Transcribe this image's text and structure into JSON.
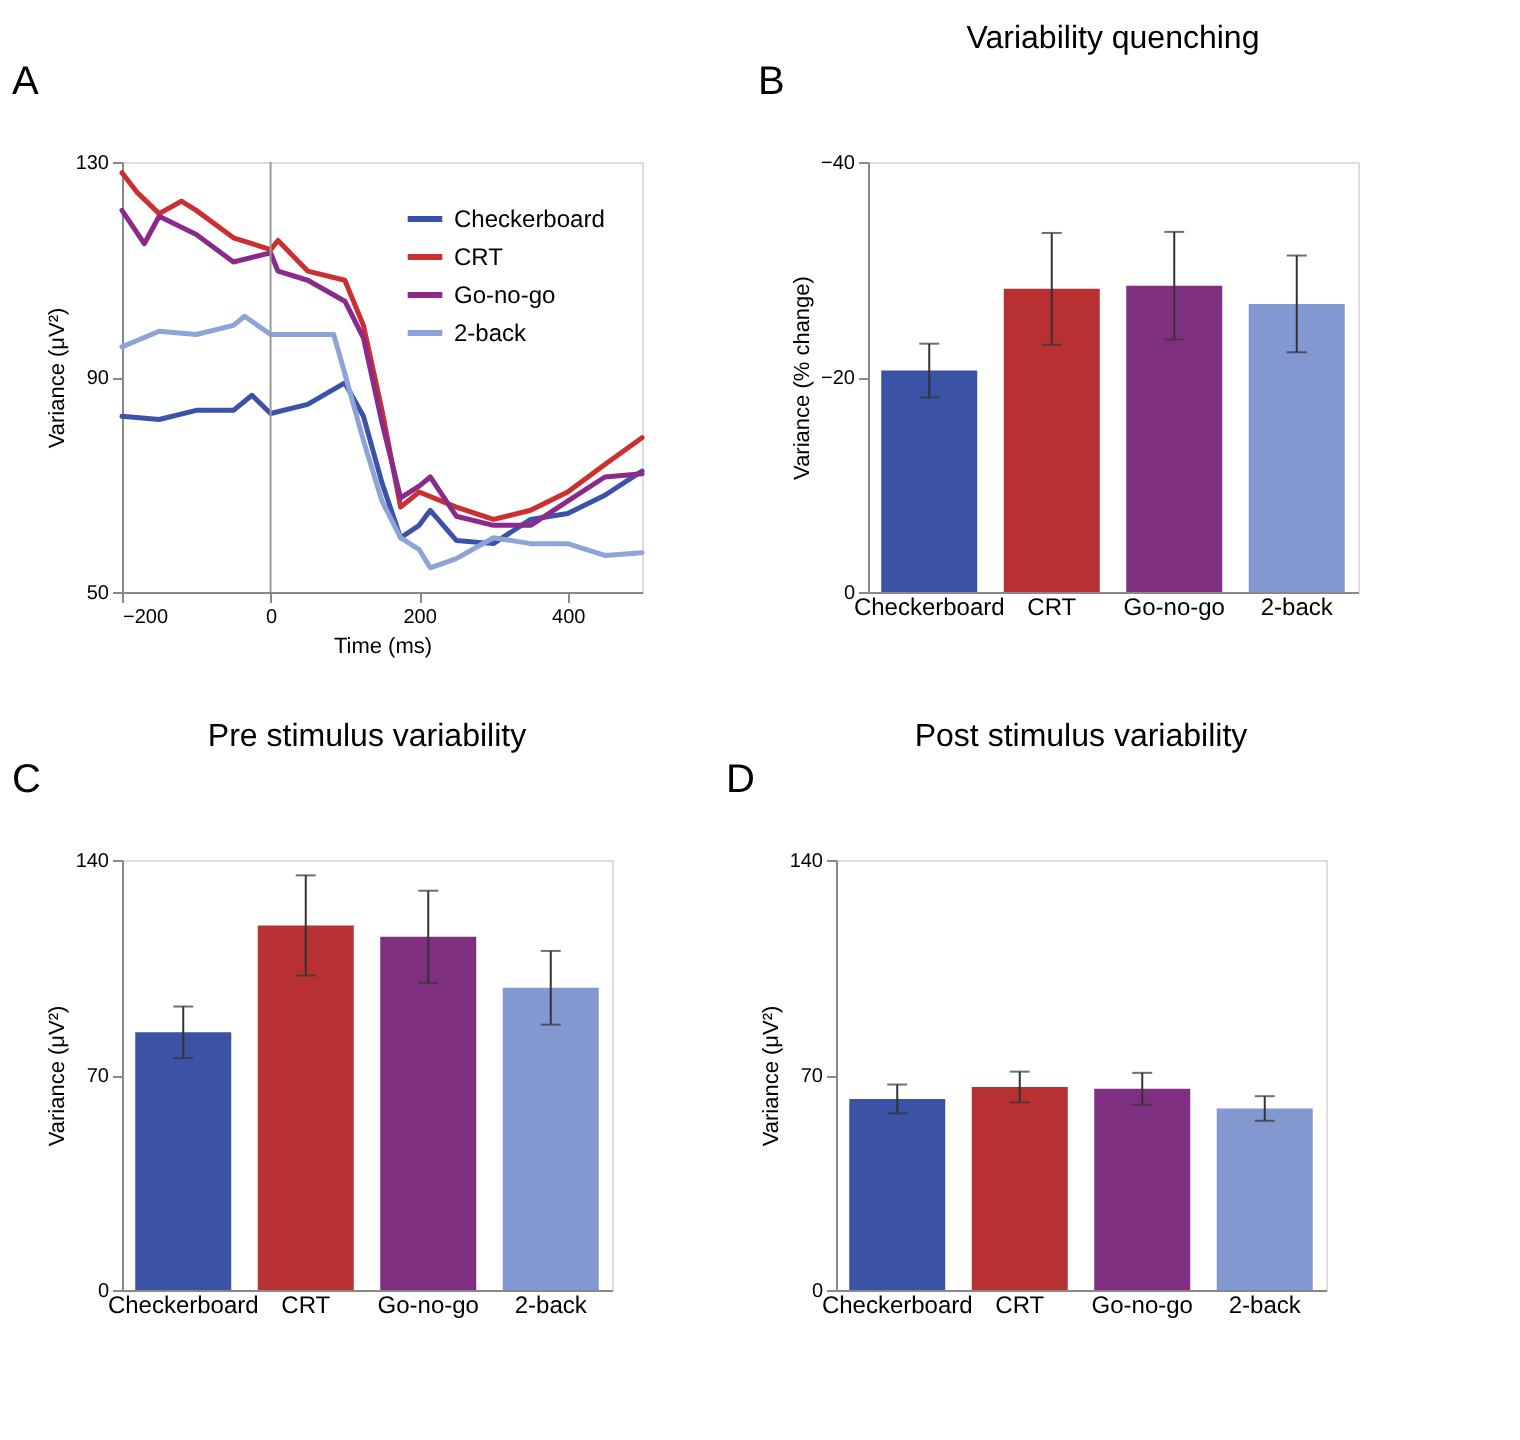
{
  "chart_data": [
    {
      "type": "line",
      "xlabel": "Time (ms)",
      "ylabel": "Variance (μV²)",
      "annotations": [
        "A"
      ],
      "xlim": [
        -200,
        500
      ],
      "xticks": [
        -200,
        0,
        200,
        400
      ],
      "ylim": [
        50,
        130
      ],
      "yticks": [
        50,
        90,
        130
      ],
      "grid": false,
      "legend": "top right",
      "line_style": "solid",
      "marker": "none",
      "ref_lines": [
        {
          "axis": "x",
          "value": 0,
          "color": "#9a9a9a"
        }
      ],
      "series": [
        {
          "name": "Checkerboard",
          "color": "#3c52a8",
          "x": [
            -200,
            -150,
            -100,
            -50,
            -25,
            0,
            50,
            100,
            125,
            150,
            175,
            200,
            215,
            250,
            300,
            350,
            400,
            450,
            500
          ],
          "values": [
            82.7,
            82.1,
            83.8,
            83.8,
            86.6,
            83.2,
            84.9,
            88.9,
            82.7,
            70.3,
            60.1,
            62.4,
            65.2,
            59.6,
            59.0,
            63.5,
            64.6,
            68.0,
            72.5
          ]
        },
        {
          "name": "CRT",
          "color": "#cc2f2f",
          "x": [
            -200,
            -180,
            -150,
            -120,
            -100,
            -50,
            0,
            10,
            50,
            100,
            125,
            150,
            175,
            200,
            250,
            300,
            350,
            400,
            450,
            500
          ],
          "values": [
            128.0,
            124.4,
            120.4,
            122.7,
            121.0,
            115.9,
            113.7,
            115.4,
            109.7,
            108.0,
            99.6,
            83.8,
            65.8,
            68.6,
            65.8,
            63.5,
            65.2,
            68.6,
            73.7,
            78.7
          ]
        },
        {
          "name": "Go-no-go",
          "color": "#8b2a8b",
          "x": [
            -200,
            -170,
            -150,
            -100,
            -50,
            0,
            10,
            50,
            100,
            125,
            150,
            175,
            200,
            215,
            250,
            300,
            350,
            400,
            450,
            500
          ],
          "values": [
            121.0,
            114.8,
            119.9,
            116.5,
            111.4,
            113.1,
            109.7,
            108.0,
            104.1,
            97.3,
            81.5,
            67.5,
            69.7,
            71.4,
            64.1,
            62.4,
            62.4,
            66.9,
            71.4,
            72.0
          ]
        },
        {
          "name": "2-back",
          "color": "#8ea3d8",
          "x": [
            -200,
            -150,
            -100,
            -50,
            -35,
            0,
            50,
            85,
            100,
            125,
            150,
            175,
            200,
            215,
            250,
            300,
            350,
            400,
            450,
            500
          ],
          "values": [
            95.6,
            98.5,
            97.9,
            99.6,
            101.3,
            97.9,
            97.9,
            97.9,
            90.6,
            78.2,
            66.9,
            60.1,
            57.9,
            54.5,
            56.2,
            60.1,
            59.0,
            59.0,
            56.8,
            57.3
          ]
        }
      ]
    },
    {
      "type": "bar",
      "title": "Variability quenching",
      "ylabel": "Variance (% change)",
      "annotations": [
        "B"
      ],
      "categories": [
        "Checkerboard",
        "CRT",
        "Go-no-go",
        "2-back"
      ],
      "values": [
        -20.6,
        -28.2,
        -28.5,
        -26.8
      ],
      "errors": [
        2.5,
        5.2,
        5.0,
        4.5
      ],
      "colors": [
        "#3a53a4",
        "#b73032",
        "#7f2f80",
        "#8398d0"
      ],
      "ylim": [
        0,
        -40
      ],
      "yticks": [
        0,
        -20,
        -40
      ],
      "grid": false
    },
    {
      "type": "bar",
      "title": "Pre stimulus variability",
      "ylabel": "Variance (μV²)",
      "annotations": [
        "C"
      ],
      "categories": [
        "Checkerboard",
        "CRT",
        "Go-no-go",
        "2-back"
      ],
      "values": [
        83.9,
        118.7,
        115.0,
        98.4
      ],
      "errors": [
        8.4,
        16.3,
        15.0,
        12.0
      ],
      "colors": [
        "#3a53a4",
        "#b73032",
        "#7f2f80",
        "#8398d0"
      ],
      "ylim": [
        0,
        140
      ],
      "yticks": [
        0,
        70,
        140
      ],
      "grid": false
    },
    {
      "type": "bar",
      "title": "Post stimulus variability",
      "ylabel": "Variance (μV²)",
      "annotations": [
        "D"
      ],
      "categories": [
        "Checkerboard",
        "CRT",
        "Go-no-go",
        "2-back"
      ],
      "values": [
        62.2,
        66.1,
        65.5,
        59.1
      ],
      "errors": [
        4.7,
        5.0,
        5.2,
        4.0
      ],
      "colors": [
        "#3a53a4",
        "#b73032",
        "#7f2f80",
        "#8398d0"
      ],
      "ylim": [
        0,
        140
      ],
      "yticks": [
        0,
        70,
        140
      ],
      "grid": false
    }
  ]
}
